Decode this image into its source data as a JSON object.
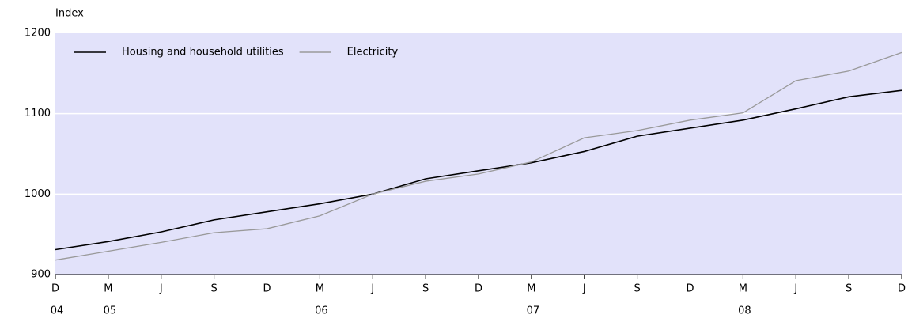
{
  "chart_data": {
    "type": "line",
    "y_label": "Index",
    "categories": [
      "D",
      "M",
      "J",
      "S",
      "D",
      "M",
      "J",
      "S",
      "D",
      "M",
      "J",
      "S",
      "D",
      "M",
      "J",
      "S",
      "D"
    ],
    "year_labels": [
      "04",
      "05",
      null,
      null,
      null,
      "06",
      null,
      null,
      null,
      "07",
      null,
      null,
      null,
      "08",
      null,
      null,
      null
    ],
    "series": [
      {
        "name": "Housing and household utilities",
        "color": "#000000",
        "values": [
          931,
          941,
          953,
          968,
          978,
          988,
          1000,
          1019,
          1029,
          1039,
          1053,
          1072,
          1082,
          1092,
          1106,
          1121,
          1129
        ]
      },
      {
        "name": "Electricity",
        "color": "#999999",
        "values": [
          918,
          929,
          940,
          952,
          957,
          973,
          1000,
          1016,
          1025,
          1040,
          1070,
          1079,
          1092,
          1101,
          1141,
          1153,
          1176
        ]
      }
    ],
    "ylim": [
      900,
      1200
    ],
    "yticks": [
      900,
      1000,
      1100,
      1200
    ],
    "grid": true,
    "background": "#e2e2fa",
    "legend": "top-left"
  }
}
